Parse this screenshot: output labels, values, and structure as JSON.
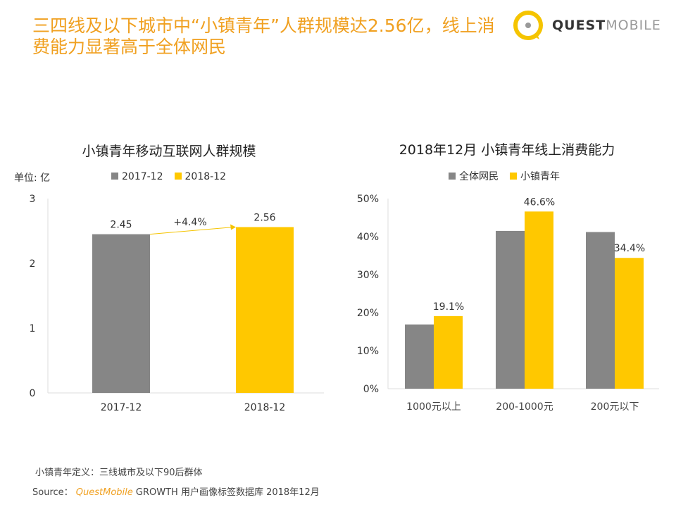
{
  "header": {
    "title": "三四线及以下城市中“小镇青年”人群规模达2.56亿，线上消费能力显著高于全体网民",
    "logo": "QUESTMOBILE",
    "logo_bold": "QUEST",
    "logo_light": "MOBILE"
  },
  "colors": {
    "gray": "#868686",
    "yellow": "#ffc800",
    "title": "#f0a020"
  },
  "chart_data": [
    {
      "type": "bar",
      "title": "小镇青年移动互联网人群规模",
      "unit_label": "单位: 亿",
      "categories": [
        "2017-12",
        "2018-12"
      ],
      "series": [
        {
          "name": "2017-12",
          "values": [
            2.45,
            null
          ],
          "color": "#868686"
        },
        {
          "name": "2018-12",
          "values": [
            null,
            2.56
          ],
          "color": "#ffc800"
        }
      ],
      "data_labels": [
        "2.45",
        "2.56"
      ],
      "annotation": "+4.4%",
      "ylim": [
        0,
        3
      ],
      "yticks": [
        "0",
        "1",
        "2",
        "3"
      ],
      "legend": "top"
    },
    {
      "type": "bar",
      "title": "2018年12月 小镇青年线上消费能力",
      "categories": [
        "1000元以上",
        "200-1000元",
        "200元以下"
      ],
      "series": [
        {
          "name": "全体网民",
          "values": [
            16.9,
            41.5,
            41.2
          ],
          "color": "#868686"
        },
        {
          "name": "小镇青年",
          "values": [
            19.1,
            46.6,
            34.4
          ],
          "color": "#ffc800"
        }
      ],
      "data_labels": [
        "19.1%",
        "46.6%",
        "34.4%"
      ],
      "ylim": [
        0,
        50
      ],
      "yticks": [
        "0%",
        "10%",
        "20%",
        "30%",
        "40%",
        "50%"
      ],
      "legend": "top"
    }
  ],
  "footer": {
    "definition": "小镇青年定义：三线城市及以下90后群体",
    "source_label": "Source：",
    "source_brand": "QuestMobile",
    "source_rest": "GROWTH 用户画像标签数据库 2018年12月"
  }
}
